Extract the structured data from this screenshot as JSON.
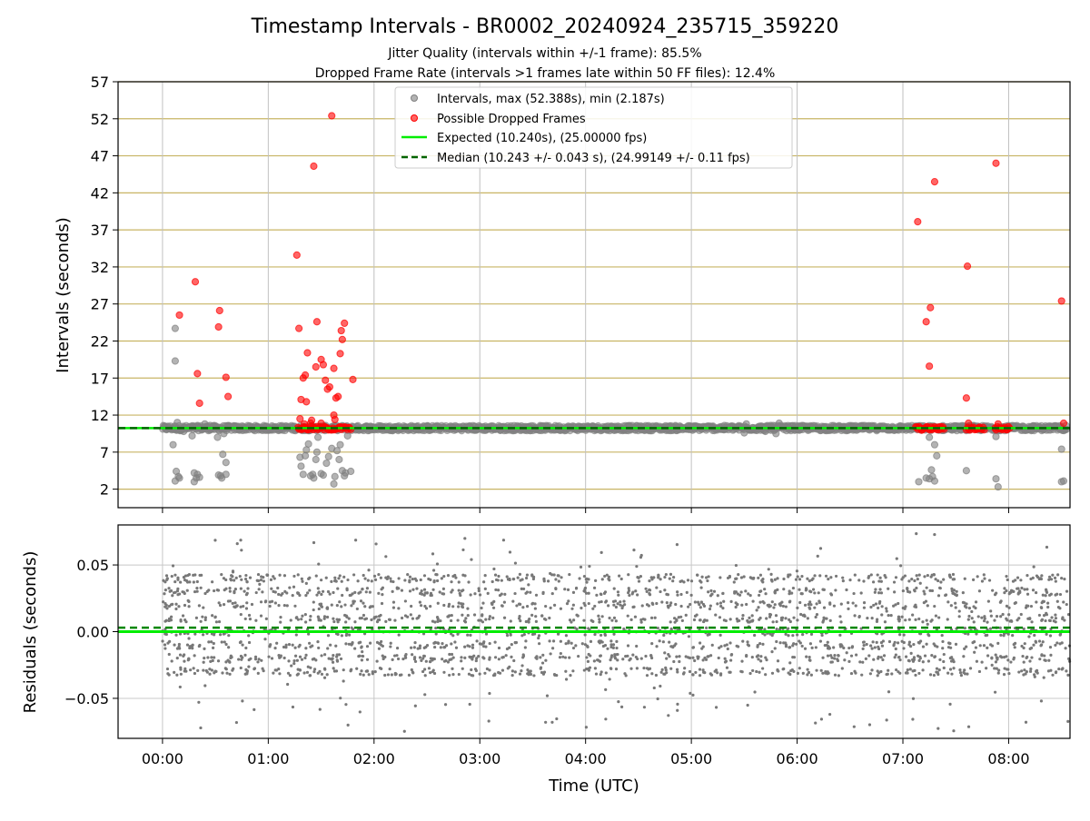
{
  "figure": {
    "title": "Timestamp Intervals - BR0002_20240924_235715_359220",
    "subtitle_1": "Jitter Quality (intervals within +/-1 frame): 85.5%",
    "subtitle_2": "Dropped Frame Rate (intervals >1 frames late within 50 FF files): 12.4%"
  },
  "chart_data": [
    {
      "type": "scatter",
      "ylabel": "Intervals (seconds)",
      "xlim_hours": [
        -0.42,
        8.58
      ],
      "ylim": [
        -0.5,
        57
      ],
      "yticks": [
        2,
        7,
        12,
        17,
        22,
        27,
        32,
        37,
        42,
        47,
        52,
        57
      ],
      "grid": true,
      "legend_position": "top-center",
      "legend": {
        "intervals": "Intervals, max (52.388s), min (2.187s)",
        "dropped": "Possible Dropped Frames",
        "expected": "Expected (10.240s), (25.00000 fps)",
        "median": "Median (10.243 +/- 0.043 s), (24.99149 +/- 0.11 fps)"
      },
      "colors": {
        "intervals": "#808080",
        "dropped": "#ff0000",
        "expected": "#00ee00",
        "median": "#006400",
        "ygrid": "#c8b464",
        "xgrid": "#c0c0c0"
      },
      "expected_value": 10.24,
      "median_value": 10.243,
      "baseline_clusters_hours": [
        [
          0.0,
          8.55
        ]
      ],
      "intervals_points": [
        [
          0.12,
          19.3
        ],
        [
          0.12,
          23.7
        ],
        [
          0.1,
          8.0
        ],
        [
          0.13,
          4.4
        ],
        [
          0.15,
          3.7
        ],
        [
          0.12,
          3.1
        ],
        [
          0.16,
          3.5
        ],
        [
          0.14,
          11.0
        ],
        [
          0.2,
          9.8
        ],
        [
          0.28,
          9.2
        ],
        [
          0.3,
          4.2
        ],
        [
          0.32,
          3.5
        ],
        [
          0.3,
          3.0
        ],
        [
          0.33,
          4.0
        ],
        [
          0.35,
          3.6
        ],
        [
          0.4,
          10.8
        ],
        [
          0.45,
          10.6
        ],
        [
          0.52,
          9.0
        ],
        [
          0.55,
          3.8
        ],
        [
          0.56,
          3.5
        ],
        [
          0.57,
          6.7
        ],
        [
          0.6,
          5.6
        ],
        [
          0.6,
          4.0
        ],
        [
          0.53,
          3.9
        ],
        [
          0.58,
          9.5
        ],
        [
          1.3,
          6.3
        ],
        [
          1.31,
          5.1
        ],
        [
          1.33,
          4.0
        ],
        [
          1.35,
          6.5
        ],
        [
          1.36,
          7.3
        ],
        [
          1.38,
          8.1
        ],
        [
          1.4,
          3.8
        ],
        [
          1.42,
          4.0
        ],
        [
          1.43,
          3.5
        ],
        [
          1.45,
          6.0
        ],
        [
          1.46,
          7.0
        ],
        [
          1.47,
          9.0
        ],
        [
          1.5,
          4.1
        ],
        [
          1.52,
          3.9
        ],
        [
          1.55,
          5.5
        ],
        [
          1.57,
          6.4
        ],
        [
          1.6,
          7.5
        ],
        [
          1.62,
          2.7
        ],
        [
          1.63,
          3.7
        ],
        [
          1.65,
          7.2
        ],
        [
          1.67,
          6.0
        ],
        [
          1.68,
          8.0
        ],
        [
          1.7,
          4.5
        ],
        [
          1.72,
          3.8
        ],
        [
          1.73,
          4.2
        ],
        [
          1.75,
          9.2
        ],
        [
          1.78,
          4.4
        ],
        [
          5.5,
          9.6
        ],
        [
          5.52,
          10.8
        ],
        [
          5.7,
          9.8
        ],
        [
          5.75,
          10.6
        ],
        [
          5.8,
          9.5
        ],
        [
          5.83,
          10.9
        ],
        [
          7.15,
          3.0
        ],
        [
          7.22,
          3.5
        ],
        [
          7.25,
          3.4
        ],
        [
          7.27,
          4.6
        ],
        [
          7.25,
          9.0
        ],
        [
          7.3,
          8.0
        ],
        [
          7.32,
          6.5
        ],
        [
          7.28,
          3.7
        ],
        [
          7.3,
          3.1
        ],
        [
          7.6,
          4.5
        ],
        [
          7.88,
          3.4
        ],
        [
          7.9,
          2.3
        ],
        [
          7.88,
          9.1
        ],
        [
          8.5,
          7.4
        ],
        [
          8.5,
          3.0
        ],
        [
          8.52,
          3.1
        ]
      ],
      "dropped_points": [
        [
          0.16,
          25.5
        ],
        [
          0.31,
          30.0
        ],
        [
          0.33,
          17.6
        ],
        [
          0.35,
          13.6
        ],
        [
          0.54,
          26.1
        ],
        [
          0.53,
          23.9
        ],
        [
          0.6,
          17.1
        ],
        [
          0.62,
          14.5
        ],
        [
          1.27,
          33.6
        ],
        [
          1.29,
          23.7
        ],
        [
          1.31,
          14.1
        ],
        [
          1.33,
          17.0
        ],
        [
          1.35,
          17.4
        ],
        [
          1.37,
          20.4
        ],
        [
          1.36,
          13.8
        ],
        [
          1.41,
          11.3
        ],
        [
          1.43,
          45.6
        ],
        [
          1.45,
          18.5
        ],
        [
          1.46,
          24.6
        ],
        [
          1.5,
          19.5
        ],
        [
          1.52,
          18.8
        ],
        [
          1.54,
          16.7
        ],
        [
          1.56,
          15.5
        ],
        [
          1.58,
          15.8
        ],
        [
          1.6,
          52.4
        ],
        [
          1.62,
          18.3
        ],
        [
          1.63,
          11.4
        ],
        [
          1.64,
          14.3
        ],
        [
          1.66,
          14.5
        ],
        [
          1.68,
          20.3
        ],
        [
          1.69,
          23.4
        ],
        [
          1.7,
          22.2
        ],
        [
          1.72,
          24.4
        ],
        [
          1.8,
          16.8
        ],
        [
          1.3,
          11.5
        ],
        [
          1.34,
          10.8
        ],
        [
          1.4,
          10.9
        ],
        [
          1.5,
          10.9
        ],
        [
          1.62,
          12.0
        ],
        [
          7.14,
          38.1
        ],
        [
          7.22,
          24.6
        ],
        [
          7.26,
          26.5
        ],
        [
          7.25,
          18.6
        ],
        [
          7.3,
          43.5
        ],
        [
          7.61,
          32.1
        ],
        [
          7.6,
          14.3
        ],
        [
          7.88,
          46.0
        ],
        [
          7.62,
          10.9
        ],
        [
          7.9,
          10.8
        ],
        [
          8.5,
          27.4
        ],
        [
          8.52,
          10.9
        ]
      ],
      "dropped_baseline_clusters_hours": [
        [
          1.28,
          1.79
        ],
        [
          7.12,
          7.4
        ],
        [
          7.6,
          7.78
        ],
        [
          7.87,
          8.02
        ]
      ]
    },
    {
      "type": "scatter",
      "xlabel": "Time (UTC)",
      "ylabel": "Residuals (seconds)",
      "xlim_hours": [
        -0.42,
        8.58
      ],
      "ylim": [
        -0.08,
        0.08
      ],
      "yticks": [
        0.05,
        0.0,
        -0.05
      ],
      "ytick_labels": [
        "0.05",
        "0.00",
        "−0.05"
      ],
      "xticks_hours": [
        0,
        1,
        2,
        3,
        4,
        5,
        6,
        7,
        8
      ],
      "xtick_labels": [
        "00:00",
        "01:00",
        "02:00",
        "03:00",
        "04:00",
        "05:00",
        "06:00",
        "07:00",
        "08:00"
      ],
      "grid": true,
      "expected_value": 0.0,
      "median_value": 0.003,
      "colors": {
        "points": "#787878",
        "expected": "#00ee00",
        "median": "#008800",
        "grid": "#c8c8c8"
      },
      "residual_band_levels": [
        0.04,
        0.03,
        0.02,
        0.01,
        0.0,
        -0.01,
        -0.02,
        -0.03
      ],
      "residual_range_hours": [
        0.0,
        8.58
      ]
    }
  ]
}
